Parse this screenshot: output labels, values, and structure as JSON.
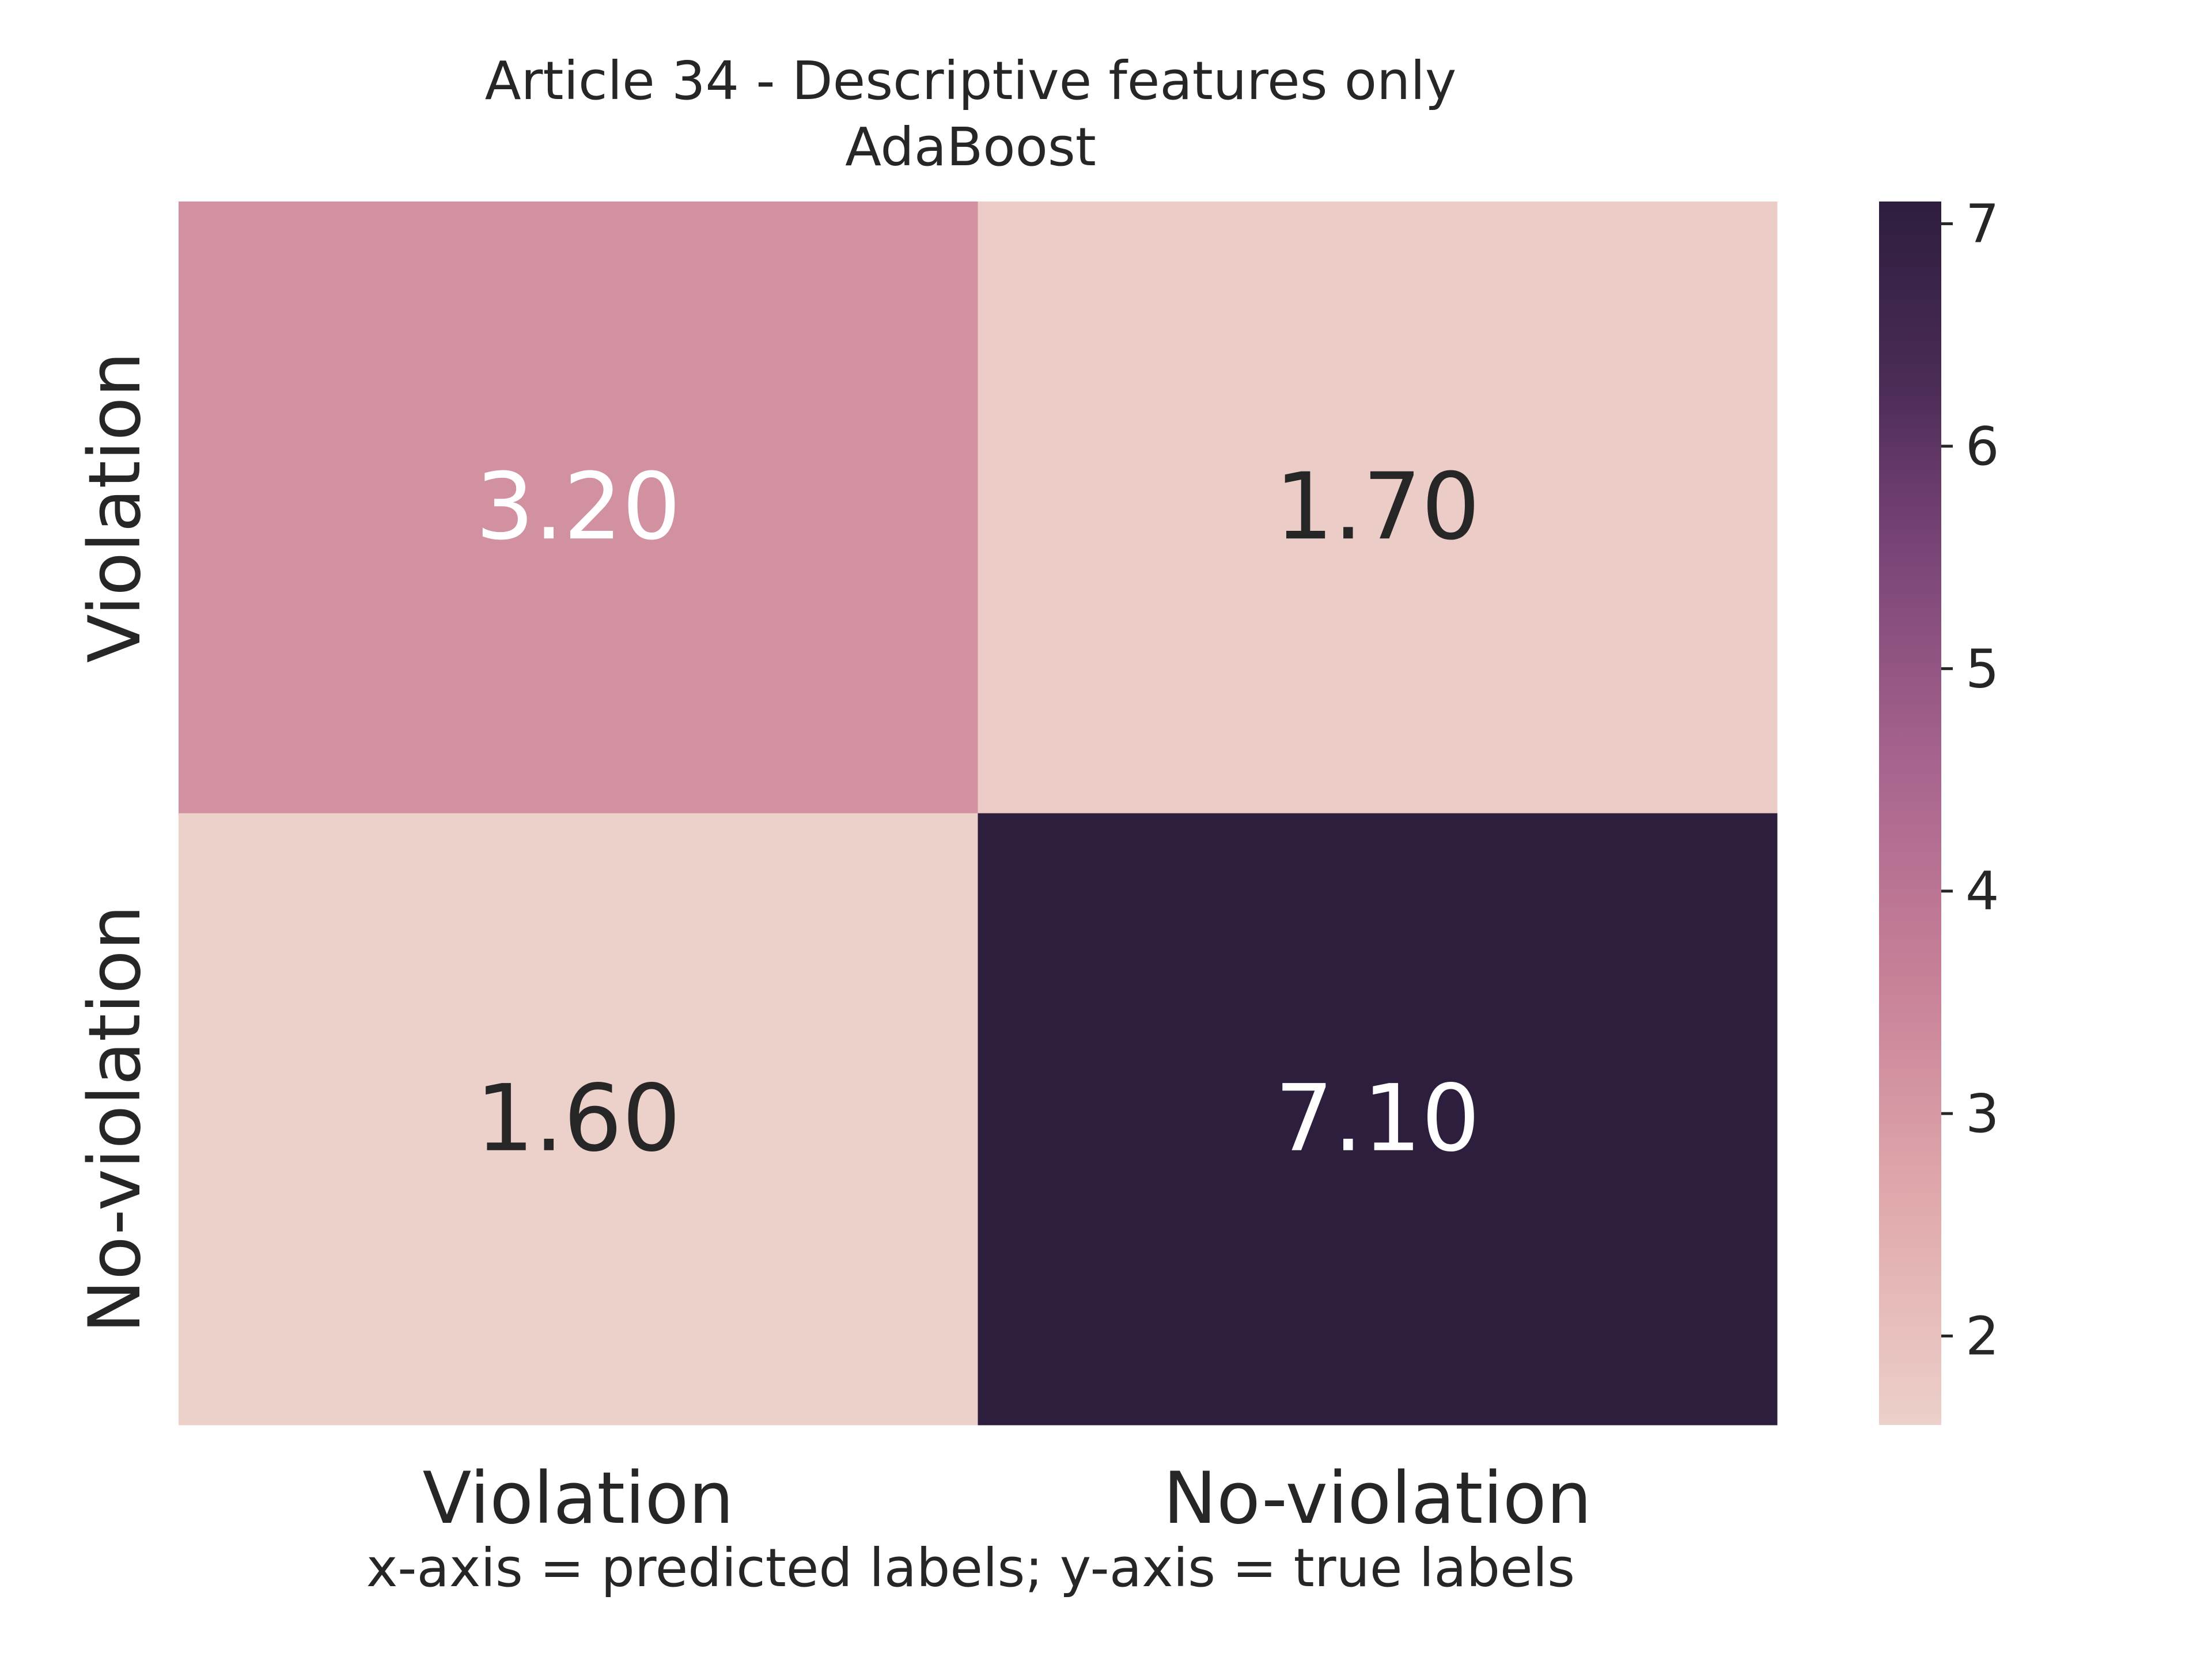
{
  "chart_data": {
    "type": "heatmap",
    "title": "Article 34 - Descriptive features only",
    "subtitle": "AdaBoost",
    "xlabel": "x-axis = predicted labels; y-axis = true labels",
    "ylabel": "",
    "x_categories": [
      "Violation",
      "No-violation"
    ],
    "y_categories": [
      "Violation",
      "No-violation"
    ],
    "values": [
      [
        3.2,
        1.7
      ],
      [
        1.6,
        7.1
      ]
    ],
    "value_format": "2 decimals",
    "colorbar": {
      "range": [
        1.6,
        7.1
      ],
      "ticks": [
        2,
        3,
        4,
        5,
        6,
        7
      ],
      "colormap": "seaborn cubehelix light-to-dark",
      "color_low": "#ecd0ca",
      "color_high": "#2e1e3e"
    },
    "grid": false
  }
}
